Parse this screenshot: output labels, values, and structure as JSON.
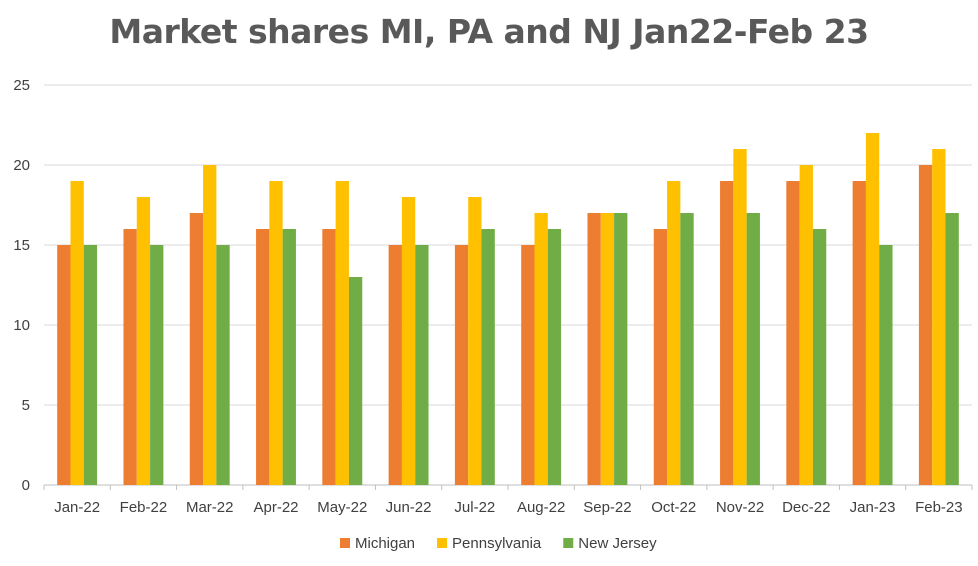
{
  "chart_data": {
    "type": "bar",
    "title": "Market shares MI, PA and NJ Jan22-Feb 23",
    "xlabel": "",
    "ylabel": "",
    "ylim": [
      0,
      25
    ],
    "yticks": [
      0,
      5,
      10,
      15,
      20,
      25
    ],
    "grid": true,
    "legend": "bottom",
    "categories": [
      "Jan-22",
      "Feb-22",
      "Mar-22",
      "Apr-22",
      "May-22",
      "Jun-22",
      "Jul-22",
      "Aug-22",
      "Sep-22",
      "Oct-22",
      "Nov-22",
      "Dec-22",
      "Jan-23",
      "Feb-23"
    ],
    "series": [
      {
        "name": "Michigan",
        "color": "#ED7D31",
        "values": [
          15,
          16,
          17,
          16,
          16,
          15,
          15,
          15,
          17,
          16,
          19,
          19,
          19,
          20
        ]
      },
      {
        "name": "Pennsylvania",
        "color": "#FFC000",
        "values": [
          19,
          18,
          20,
          19,
          19,
          18,
          18,
          17,
          17,
          19,
          21,
          20,
          22,
          21
        ]
      },
      {
        "name": "New Jersey",
        "color": "#70AD47",
        "values": [
          15,
          15,
          15,
          16,
          13,
          15,
          16,
          16,
          17,
          17,
          17,
          16,
          15,
          17
        ]
      }
    ]
  }
}
